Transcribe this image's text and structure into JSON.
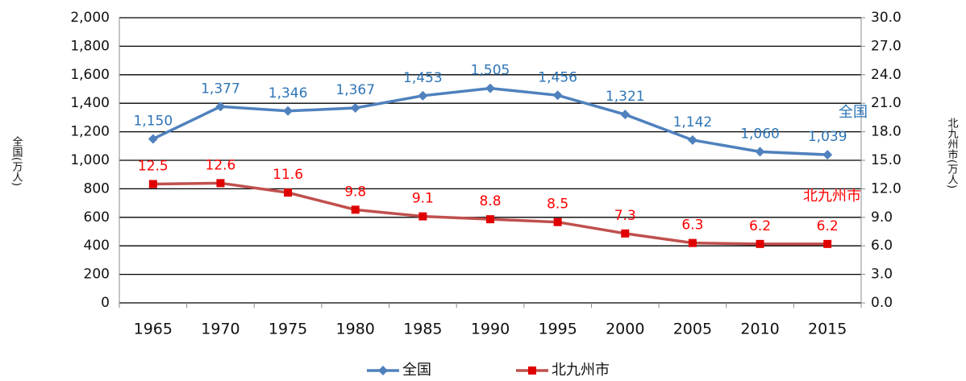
{
  "chart_data": {
    "type": "line",
    "categories": [
      "1965",
      "1970",
      "1975",
      "1980",
      "1985",
      "1990",
      "1995",
      "2000",
      "2005",
      "2010",
      "2015"
    ],
    "series": [
      {
        "name": "全国",
        "color": "#4f81bd",
        "axis": "y",
        "values": [
          1150,
          1377,
          1346,
          1367,
          1453,
          1505,
          1456,
          1321,
          1142,
          1060,
          1039
        ],
        "value_labels": [
          "1,150",
          "1,377",
          "1,346",
          "1,367",
          "1,453",
          "1,505",
          "1,456",
          "1,321",
          "1,142",
          "1,060",
          "1,039"
        ]
      },
      {
        "name": "北九州市",
        "color": "#c0504d",
        "axis": "y2",
        "values": [
          12.5,
          12.6,
          11.6,
          9.8,
          9.1,
          8.8,
          8.5,
          7.3,
          6.3,
          6.2,
          6.2
        ]
      }
    ],
    "ylabel": "全国(万人)",
    "y2label": "北九州市(万人)",
    "ylim": [
      0,
      2000
    ],
    "yticks": [
      0,
      200,
      400,
      600,
      800,
      {
        "value": 1000,
        "label": "1,000"
      },
      {
        "value": 1200,
        "label": "1,200"
      },
      {
        "value": 1400,
        "label": "1,400"
      },
      {
        "value": 1600,
        "label": "1,600"
      },
      {
        "value": 1800,
        "label": "1,800"
      },
      {
        "value": 2000,
        "label": "2,000"
      }
    ],
    "y2lim": [
      0,
      30
    ],
    "y2ticks": [
      {
        "value": 0,
        "label": "0.0"
      },
      {
        "value": 3,
        "label": "3.0"
      },
      {
        "value": 6,
        "label": "6.0"
      },
      {
        "value": 9,
        "label": "9.0"
      },
      {
        "value": 12,
        "label": "12.0"
      },
      {
        "value": 15,
        "label": "15.0"
      },
      {
        "value": 18,
        "label": "18.0"
      },
      {
        "value": 21,
        "label": "21.0"
      },
      {
        "value": 24,
        "label": "24.0"
      },
      {
        "value": 27,
        "label": "27.0"
      },
      {
        "value": 30,
        "label": "30.0"
      }
    ],
    "annotations": [
      "全国",
      "北九州市"
    ],
    "grid": true,
    "legend": "bottom"
  }
}
